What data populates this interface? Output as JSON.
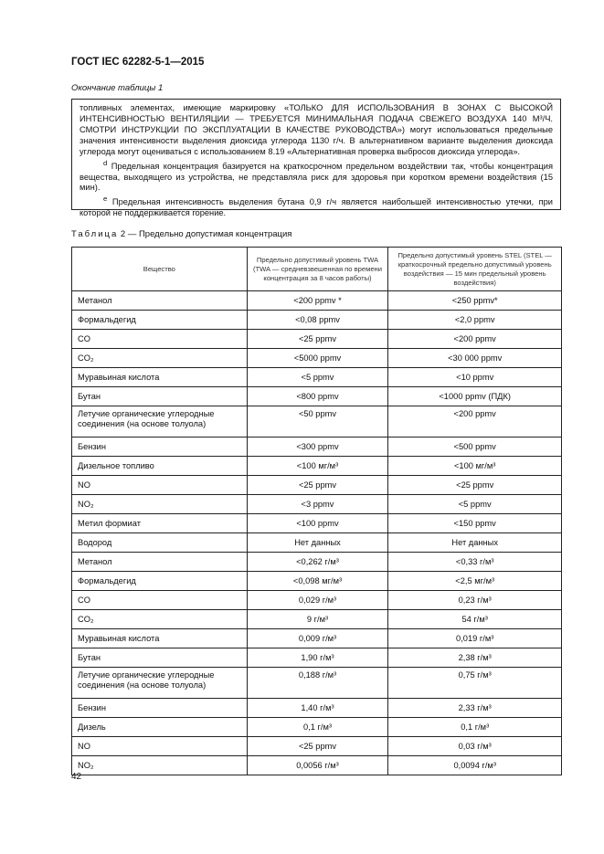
{
  "header": "ГОСТ IEC 62282-5-1—2015",
  "continuation": "Окончание таблицы 1",
  "footnotes": {
    "p1": "топливных элементах, имеющие маркировку «ТОЛЬКО ДЛЯ ИСПОЛЬЗОВАНИЯ В ЗОНАХ С ВЫСОКОЙ ИНТЕНСИВНОСТЬЮ ВЕНТИЛЯЦИИ — ТРЕБУЕТСЯ МИНИМАЛЬНАЯ ПОДАЧА СВЕЖЕГО ВОЗДУХА 140 М³/Ч. СМОТРИ ИНСТРУКЦИИ ПО ЭКСПЛУАТАЦИИ В КАЧЕСТВЕ РУКОВОДСТВА») могут использоваться предельные значения интенсивности выделения диоксида углерода 1130 г/ч. В альтернативном варианте выделения диоксида углерода могут оцениваться с использованием 8.19 «Альтернативная проверка выбросов диоксида углерода».",
    "d_mark": "d",
    "d": "Предельная концентрация базируется на краткосрочном предельном воздействии так, чтобы концентрация вещества, выходящего из устройства, не представляла риск для здоровья при коротком времени воздействия (15 мин).",
    "e_mark": "e",
    "e": "Предельная интенсивность выделения бутана 0,9 г/ч является наибольшей интенсивностью утечки, при которой не поддерживается горение."
  },
  "table": {
    "caption_prefix": "Таблица",
    "caption": "2 — Предельно допустимая концентрация",
    "columns": [
      "Вещество",
      "Предельно допустимый уровень TWA (TWA — средневзвешенная по времени концентрация за 8 часов работы)",
      "Предельно допустимый уровень STEL (STEL — краткосрочный предельно допустимый уровень воздействия — 15 мин предельный уровень воздействия)"
    ],
    "rows": [
      [
        "Метанол",
        "<200 ppmv *",
        "<250 ppmv*"
      ],
      [
        "Формальдегид",
        "<0,08 ppmv",
        "<2,0 ppmv"
      ],
      [
        "CO",
        "<25 ppmv",
        "<200 ppmv"
      ],
      [
        "CO₂",
        "<5000 ppmv",
        "<30 000 ppmv"
      ],
      [
        "Муравьиная кислота",
        "<5 ppmv",
        "<10 ppmv"
      ],
      [
        "Бутан",
        "<800 ppmv",
        "<1000 ppmv (ПДК)"
      ],
      [
        "Летучие органические углеродные соединения (на основе толуола)",
        "<50 ppmv",
        "<200 ppmv"
      ],
      [
        "Бензин",
        "<300 ppmv",
        "<500 ppmv"
      ],
      [
        "Дизельное топливо",
        "<100 мг/м³",
        "<100 мг/м³"
      ],
      [
        "NO",
        "<25 ppmv",
        "<25 ppmv"
      ],
      [
        "NO₂",
        "<3 ppmv",
        "<5 ppmv"
      ],
      [
        "Метил формиат",
        "<100 ppmv",
        "<150 ppmv"
      ],
      [
        "Водород",
        "Нет данных",
        "Нет данных"
      ],
      [
        "Метанол",
        "<0,262 г/м³",
        "<0,33 г/м³"
      ],
      [
        "Формальдегид",
        "<0,098 мг/м³",
        "<2,5 мг/м³"
      ],
      [
        "CO",
        "0,029 г/м³",
        "0,23 г/м³"
      ],
      [
        "CO₂",
        "9 г/м³",
        "54 г/м³"
      ],
      [
        "Муравьиная кислота",
        "0,009 г/м³",
        "0,019 г/м³"
      ],
      [
        "Бутан",
        "1,90 г/м³",
        "2,38 г/м³"
      ],
      [
        "Летучие органические углеродные соединения (на основе толуола)",
        "0,188 г/м³",
        "0,75 г/м³"
      ],
      [
        "Бензин",
        "1,40 г/м³",
        "2,33 г/м³"
      ],
      [
        "Дизель",
        "0,1 г/м³",
        "0,1 г/м³"
      ],
      [
        "NO",
        "<25 ppmv",
        "0,03 г/м³"
      ],
      [
        "NO₂",
        "0,0056 г/м³",
        "0,0094 г/м³"
      ]
    ]
  },
  "page_number": "42"
}
